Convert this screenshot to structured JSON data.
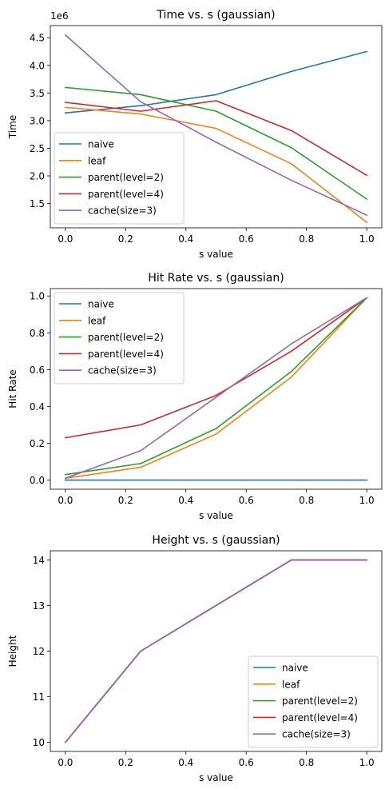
{
  "chart_data": [
    {
      "type": "line",
      "title": "Time vs. s (gaussian)",
      "xlabel": "s value",
      "ylabel": "Time",
      "y_offset_label": "1e6",
      "x": [
        0.0,
        0.25,
        0.5,
        0.75,
        1.0
      ],
      "xlim": [
        -0.05,
        1.05
      ],
      "ylim": [
        1.06,
        4.72
      ],
      "xticks": [
        "0.0",
        "0.2",
        "0.4",
        "0.6",
        "0.8",
        "1.0"
      ],
      "yticks": [
        "1.5",
        "2.0",
        "2.5",
        "3.0",
        "3.5",
        "4.0",
        "4.5"
      ],
      "legend_position": "lower-left",
      "series": [
        {
          "name": "naive",
          "color": "#1f77b4",
          "values": [
            3.14,
            3.27,
            3.47,
            3.89,
            4.25
          ]
        },
        {
          "name": "leaf",
          "color": "#ff7f0e",
          "values": [
            3.24,
            3.12,
            2.86,
            2.22,
            1.16
          ]
        },
        {
          "name": "parent(level=2)",
          "color": "#2ca02c",
          "values": [
            3.6,
            3.47,
            3.17,
            2.51,
            1.58
          ]
        },
        {
          "name": "parent(level=4)",
          "color": "#d62728",
          "values": [
            3.33,
            3.17,
            3.36,
            2.82,
            2.01
          ]
        },
        {
          "name": "cache(size=3)",
          "color": "#9467bd",
          "values": [
            4.55,
            3.34,
            2.61,
            1.92,
            1.29
          ]
        }
      ]
    },
    {
      "type": "line",
      "title": "Hit Rate vs. s (gaussian)",
      "xlabel": "s value",
      "ylabel": "Hit Rate",
      "x": [
        0.0,
        0.25,
        0.5,
        0.75,
        1.0
      ],
      "xlim": [
        -0.05,
        1.05
      ],
      "ylim": [
        -0.0495,
        1.04
      ],
      "xticks": [
        "0.0",
        "0.2",
        "0.4",
        "0.6",
        "0.8",
        "1.0"
      ],
      "yticks": [
        "0.0",
        "0.2",
        "0.4",
        "0.6",
        "0.8",
        "1.0"
      ],
      "legend_position": "upper-left",
      "series": [
        {
          "name": "naive",
          "color": "#1f77b4",
          "values": [
            0.0,
            0.0,
            0.0,
            0.0,
            0.0
          ]
        },
        {
          "name": "leaf",
          "color": "#ff7f0e",
          "values": [
            0.01,
            0.07,
            0.25,
            0.56,
            0.99
          ]
        },
        {
          "name": "parent(level=2)",
          "color": "#2ca02c",
          "values": [
            0.03,
            0.09,
            0.28,
            0.59,
            0.99
          ]
        },
        {
          "name": "parent(level=4)",
          "color": "#d62728",
          "values": [
            0.23,
            0.3,
            0.46,
            0.7,
            0.99
          ]
        },
        {
          "name": "cache(size=3)",
          "color": "#9467bd",
          "values": [
            0.01,
            0.16,
            0.45,
            0.74,
            0.99
          ]
        }
      ]
    },
    {
      "type": "line",
      "title": "Height vs. s (gaussian)",
      "xlabel": "s value",
      "ylabel": "Height",
      "x": [
        0.0,
        0.25,
        0.5,
        0.75,
        1.0
      ],
      "xlim": [
        -0.05,
        1.05
      ],
      "ylim": [
        9.8,
        14.2
      ],
      "xticks": [
        "0.0",
        "0.2",
        "0.4",
        "0.6",
        "0.8",
        "1.0"
      ],
      "yticks": [
        "10",
        "11",
        "12",
        "13",
        "14"
      ],
      "legend_position": "lower-right",
      "series": [
        {
          "name": "naive",
          "color": "#1f77b4",
          "values": [
            10,
            12,
            13,
            14,
            14
          ]
        },
        {
          "name": "leaf",
          "color": "#ff7f0e",
          "values": [
            10,
            12,
            13,
            14,
            14
          ]
        },
        {
          "name": "parent(level=2)",
          "color": "#2ca02c",
          "values": [
            10,
            12,
            13,
            14,
            14
          ]
        },
        {
          "name": "parent(level=4)",
          "color": "#d62728",
          "values": [
            10,
            12,
            13,
            14,
            14
          ]
        },
        {
          "name": "cache(size=3)",
          "color": "#9467bd",
          "values": [
            10,
            12,
            13,
            14,
            14
          ]
        }
      ]
    }
  ]
}
